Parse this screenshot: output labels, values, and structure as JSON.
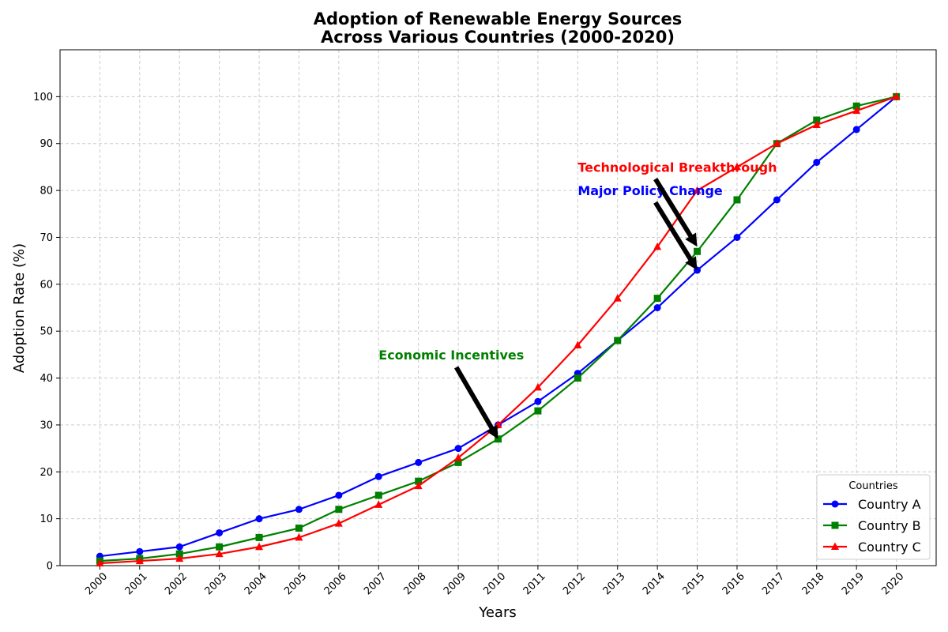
{
  "chart_data": {
    "type": "line",
    "title": "Adoption of Renewable Energy Sources",
    "subtitle": "Across Various Countries (2000-2020)",
    "xlabel": "Years",
    "ylabel": "Adoption Rate (%)",
    "ylim": [
      0,
      110
    ],
    "yticks": [
      0,
      10,
      20,
      30,
      40,
      50,
      60,
      70,
      80,
      90,
      100
    ],
    "grid": true,
    "legend": {
      "title": "Countries",
      "position": "lower-right"
    },
    "categories": [
      "2000",
      "2001",
      "2002",
      "2003",
      "2004",
      "2005",
      "2006",
      "2007",
      "2008",
      "2009",
      "2010",
      "2011",
      "2012",
      "2013",
      "2014",
      "2015",
      "2016",
      "2017",
      "2018",
      "2019",
      "2020"
    ],
    "series": [
      {
        "name": "Country A",
        "color": "#0000ff",
        "marker": "circle",
        "values": [
          2,
          3,
          4,
          7,
          10,
          12,
          15,
          19,
          22,
          25,
          30,
          35,
          41,
          48,
          55,
          63,
          70,
          78,
          86,
          93,
          100
        ]
      },
      {
        "name": "Country B",
        "color": "#008000",
        "marker": "square",
        "values": [
          1,
          1.5,
          2.5,
          4,
          6,
          8,
          12,
          15,
          18,
          22,
          27,
          33,
          40,
          48,
          57,
          67,
          78,
          90,
          95,
          98,
          100
        ]
      },
      {
        "name": "Country C",
        "color": "#ff0000",
        "marker": "triangle",
        "values": [
          0.5,
          1,
          1.5,
          2.5,
          4,
          6,
          9,
          13,
          17,
          23,
          30,
          38,
          47,
          57,
          68,
          80,
          85,
          90,
          94,
          97,
          100
        ]
      }
    ],
    "annotations": [
      {
        "text": "Economic Incentives",
        "color": "#008000",
        "text_x": "2007",
        "text_y": 45,
        "arrow_to_x": "2010",
        "arrow_to_y": 27
      },
      {
        "text": "Major Policy Change",
        "color": "#0000ff",
        "text_x": "2012",
        "text_y": 80,
        "arrow_to_x": "2015",
        "arrow_to_y": 63
      },
      {
        "text": "Technological Breakthrough",
        "color": "#ff0000",
        "text_x": "2012",
        "text_y": 85,
        "arrow_to_x": "2015",
        "arrow_to_y": 68
      }
    ]
  }
}
